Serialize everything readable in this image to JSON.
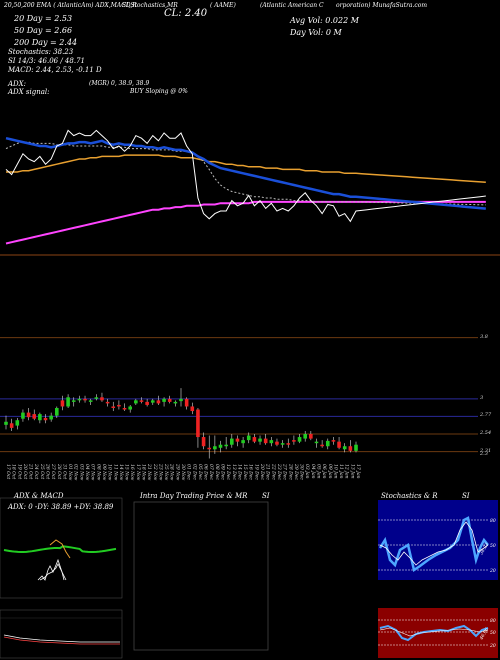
{
  "header": {
    "line1_left": "20,50,200 EMA ( AtlanticAm) ADX,MACD,R",
    "line1_mid": "SI,Stochastics,MR",
    "line1_ticker": "( AAME)",
    "line1_right": "(Atlantic American C",
    "line1_right2": "orporation) MunafaSutra.com",
    "cl_label": "CL: 2.40",
    "ema20": "20  Day = 2.53",
    "ema50": "50  Day = 2.66",
    "ema200": "200  Day = 2.44",
    "stochastics": "Stochastics: 38.23",
    "rsi": "SI 14/3: 46.06  / 48.71",
    "macd": "MACD: 2.44, 2.53,  -0.11 D",
    "adx": "ADX:",
    "adx_signal": "ADX  signal:",
    "adx_vals": "(MGR) 0,  38.9,  38.9",
    "buy_signal": "BUY Sloping @ 0%",
    "avg_vol": "Avg Vol: 0.022  M",
    "day_vol": "Day Vol: 0   M"
  },
  "price_axis": {
    "ticks": [
      "3.8",
      "3",
      "2.77",
      "2.54",
      "2.31",
      "2.3"
    ]
  },
  "colors": {
    "ema20": "#1a4fd8",
    "ema50": "#ffffff",
    "ema200": "#e8a030",
    "ema_long": "#ff44ff",
    "up": "#22cc22",
    "down": "#ee2222",
    "stoch_bg": "#00008b",
    "rsi_bg": "#8b0000"
  },
  "dates": [
    "17 Oct",
    "18 Oct",
    "19 Oct",
    "20 Oct",
    "21 Oct",
    "24 Oct",
    "25 Oct",
    "26 Oct",
    "27 Oct",
    "28 Oct",
    "31 Oct",
    "01 Nov",
    "02 Nov",
    "03 Nov",
    "04 Nov",
    "07 Nov",
    "08 Nov",
    "09 Nov",
    "10 Nov",
    "11 Nov",
    "14 Nov",
    "15 Nov",
    "16 Nov",
    "17 Nov",
    "18 Nov",
    "21 Nov",
    "22 Nov",
    "23 Nov",
    "25 Nov",
    "28 Nov",
    "29 Nov",
    "30 Nov",
    "01 Dec",
    "02 Dec",
    "05 Dec",
    "06 Dec",
    "07 Dec",
    "08 Dec",
    "09 Dec",
    "12 Dec",
    "13 Dec",
    "14 Dec",
    "15 Dec",
    "16 Dec",
    "19 Dec",
    "20 Dec",
    "21 Dec",
    "22 Dec",
    "23 Dec",
    "27 Dec",
    "28 Dec",
    "29 Dec",
    "30 Dec",
    "03 Jan",
    "04 Jan",
    "05 Jan",
    "06 Jan",
    "09 Jan",
    "10 Jan",
    "11 Jan",
    "12 Jan",
    "13 Jan",
    "17 Jan"
  ],
  "chart_data": {
    "type": "candlestick",
    "ylim": [
      2.2,
      3.9
    ],
    "candles": [
      {
        "o": 2.66,
        "h": 2.78,
        "l": 2.6,
        "c": 2.7
      },
      {
        "o": 2.68,
        "h": 2.74,
        "l": 2.58,
        "c": 2.62
      },
      {
        "o": 2.65,
        "h": 2.75,
        "l": 2.6,
        "c": 2.72
      },
      {
        "o": 2.74,
        "h": 2.86,
        "l": 2.7,
        "c": 2.82
      },
      {
        "o": 2.82,
        "h": 2.88,
        "l": 2.72,
        "c": 2.76
      },
      {
        "o": 2.8,
        "h": 2.86,
        "l": 2.72,
        "c": 2.74
      },
      {
        "o": 2.72,
        "h": 2.82,
        "l": 2.68,
        "c": 2.8
      },
      {
        "o": 2.75,
        "h": 2.8,
        "l": 2.68,
        "c": 2.72
      },
      {
        "o": 2.73,
        "h": 2.82,
        "l": 2.7,
        "c": 2.78
      },
      {
        "o": 2.78,
        "h": 2.9,
        "l": 2.75,
        "c": 2.88
      },
      {
        "o": 2.98,
        "h": 3.04,
        "l": 2.85,
        "c": 2.9
      },
      {
        "o": 2.9,
        "h": 3.06,
        "l": 2.88,
        "c": 3.02
      },
      {
        "o": 2.96,
        "h": 3.02,
        "l": 2.9,
        "c": 2.98
      },
      {
        "o": 2.98,
        "h": 3.04,
        "l": 2.95,
        "c": 3.0
      },
      {
        "o": 3.0,
        "h": 3.04,
        "l": 2.95,
        "c": 2.98
      },
      {
        "o": 2.96,
        "h": 3.0,
        "l": 2.92,
        "c": 2.98
      },
      {
        "o": 3.0,
        "h": 3.06,
        "l": 2.98,
        "c": 3.02
      },
      {
        "o": 3.02,
        "h": 3.08,
        "l": 2.96,
        "c": 2.98
      },
      {
        "o": 2.96,
        "h": 3.0,
        "l": 2.9,
        "c": 2.94
      },
      {
        "o": 2.9,
        "h": 2.96,
        "l": 2.84,
        "c": 2.88
      },
      {
        "o": 2.92,
        "h": 2.98,
        "l": 2.86,
        "c": 2.9
      },
      {
        "o": 2.88,
        "h": 2.94,
        "l": 2.84,
        "c": 2.86
      },
      {
        "o": 2.86,
        "h": 2.92,
        "l": 2.82,
        "c": 2.9
      },
      {
        "o": 2.94,
        "h": 3.0,
        "l": 2.92,
        "c": 2.98
      },
      {
        "o": 2.98,
        "h": 3.02,
        "l": 2.94,
        "c": 2.96
      },
      {
        "o": 2.96,
        "h": 3.0,
        "l": 2.9,
        "c": 2.92
      },
      {
        "o": 2.95,
        "h": 3.0,
        "l": 2.92,
        "c": 2.98
      },
      {
        "o": 2.98,
        "h": 3.04,
        "l": 2.92,
        "c": 2.94
      },
      {
        "o": 2.96,
        "h": 3.02,
        "l": 2.9,
        "c": 3.0
      },
      {
        "o": 3.0,
        "h": 3.04,
        "l": 2.94,
        "c": 2.96
      },
      {
        "o": 2.94,
        "h": 2.98,
        "l": 2.9,
        "c": 2.96
      },
      {
        "o": 2.97,
        "h": 3.14,
        "l": 2.9,
        "c": 3.0
      },
      {
        "o": 3.0,
        "h": 3.02,
        "l": 2.86,
        "c": 2.9
      },
      {
        "o": 2.9,
        "h": 2.95,
        "l": 2.8,
        "c": 2.84
      },
      {
        "o": 2.86,
        "h": 2.88,
        "l": 2.36,
        "c": 2.5
      },
      {
        "o": 2.5,
        "h": 2.56,
        "l": 2.34,
        "c": 2.38
      },
      {
        "o": 2.36,
        "h": 2.52,
        "l": 2.22,
        "c": 2.34
      },
      {
        "o": 2.34,
        "h": 2.52,
        "l": 2.28,
        "c": 2.38
      },
      {
        "o": 2.36,
        "h": 2.45,
        "l": 2.3,
        "c": 2.4
      },
      {
        "o": 2.38,
        "h": 2.5,
        "l": 2.34,
        "c": 2.4
      },
      {
        "o": 2.4,
        "h": 2.54,
        "l": 2.36,
        "c": 2.48
      },
      {
        "o": 2.48,
        "h": 2.52,
        "l": 2.38,
        "c": 2.44
      },
      {
        "o": 2.42,
        "h": 2.5,
        "l": 2.36,
        "c": 2.46
      },
      {
        "o": 2.46,
        "h": 2.56,
        "l": 2.42,
        "c": 2.52
      },
      {
        "o": 2.5,
        "h": 2.54,
        "l": 2.42,
        "c": 2.44
      },
      {
        "o": 2.44,
        "h": 2.52,
        "l": 2.4,
        "c": 2.48
      },
      {
        "o": 2.48,
        "h": 2.54,
        "l": 2.4,
        "c": 2.42
      },
      {
        "o": 2.42,
        "h": 2.5,
        "l": 2.38,
        "c": 2.46
      },
      {
        "o": 2.44,
        "h": 2.48,
        "l": 2.38,
        "c": 2.4
      },
      {
        "o": 2.4,
        "h": 2.46,
        "l": 2.36,
        "c": 2.42
      },
      {
        "o": 2.42,
        "h": 2.48,
        "l": 2.36,
        "c": 2.4
      },
      {
        "o": 2.46,
        "h": 2.52,
        "l": 2.4,
        "c": 2.44
      },
      {
        "o": 2.44,
        "h": 2.54,
        "l": 2.42,
        "c": 2.5
      },
      {
        "o": 2.48,
        "h": 2.58,
        "l": 2.44,
        "c": 2.54
      },
      {
        "o": 2.54,
        "h": 2.58,
        "l": 2.46,
        "c": 2.48
      },
      {
        "o": 2.42,
        "h": 2.48,
        "l": 2.36,
        "c": 2.44
      },
      {
        "o": 2.4,
        "h": 2.46,
        "l": 2.36,
        "c": 2.38
      },
      {
        "o": 2.38,
        "h": 2.48,
        "l": 2.34,
        "c": 2.45
      },
      {
        "o": 2.46,
        "h": 2.5,
        "l": 2.4,
        "c": 2.44
      },
      {
        "o": 2.44,
        "h": 2.5,
        "l": 2.34,
        "c": 2.36
      },
      {
        "o": 2.34,
        "h": 2.42,
        "l": 2.3,
        "c": 2.38
      },
      {
        "o": 2.38,
        "h": 2.46,
        "l": 2.3,
        "c": 2.32
      },
      {
        "o": 2.32,
        "h": 2.44,
        "l": 2.3,
        "c": 2.4
      }
    ],
    "ema_panel": {
      "ema20": [
        0.86,
        0.85,
        0.84,
        0.83,
        0.82,
        0.81,
        0.8,
        0.8,
        0.79,
        0.8,
        0.81,
        0.82,
        0.82,
        0.83,
        0.83,
        0.82,
        0.83,
        0.84,
        0.82,
        0.81,
        0.82,
        0.81,
        0.81,
        0.8,
        0.8,
        0.79,
        0.79,
        0.78,
        0.79,
        0.78,
        0.77,
        0.77,
        0.76,
        0.75,
        0.72,
        0.7,
        0.67,
        0.65,
        0.63,
        0.62,
        0.61,
        0.6,
        0.59,
        0.58,
        0.57,
        0.56,
        0.55,
        0.54,
        0.53,
        0.52,
        0.51,
        0.5,
        0.49,
        0.48,
        0.47,
        0.46,
        0.45,
        0.44,
        0.43,
        0.43,
        0.42,
        0.41,
        0.41
      ],
      "ema50": [
        0.78,
        0.8,
        0.82,
        0.83,
        0.83,
        0.82,
        0.82,
        0.82,
        0.82,
        0.81,
        0.81,
        0.81,
        0.8,
        0.8,
        0.8,
        0.8,
        0.8,
        0.8,
        0.79,
        0.79,
        0.79,
        0.79,
        0.78,
        0.78,
        0.78,
        0.78,
        0.77,
        0.77,
        0.77,
        0.77,
        0.76,
        0.76,
        0.76,
        0.75,
        0.72,
        0.68,
        0.62,
        0.55,
        0.5,
        0.47,
        0.45,
        0.44,
        0.43,
        0.42,
        0.41,
        0.41,
        0.4,
        0.4,
        0.39,
        0.39,
        0.39,
        0.38,
        0.38,
        0.38,
        0.38,
        0.37,
        0.37,
        0.37,
        0.37,
        0.37,
        0.37,
        0.37,
        0.37
      ],
      "ema200": [
        0.6,
        0.6,
        0.6,
        0.61,
        0.61,
        0.62,
        0.63,
        0.64,
        0.65,
        0.66,
        0.67,
        0.68,
        0.69,
        0.7,
        0.7,
        0.71,
        0.71,
        0.72,
        0.72,
        0.72,
        0.72,
        0.73,
        0.73,
        0.73,
        0.73,
        0.73,
        0.73,
        0.73,
        0.72,
        0.72,
        0.72,
        0.71,
        0.71,
        0.71,
        0.7,
        0.69,
        0.68,
        0.68,
        0.67,
        0.66,
        0.66,
        0.65,
        0.65,
        0.64,
        0.64,
        0.64,
        0.63,
        0.63,
        0.63,
        0.62,
        0.62,
        0.62,
        0.62,
        0.61,
        0.61,
        0.61,
        0.6,
        0.6,
        0.6,
        0.6,
        0.59,
        0.59,
        0.59
      ],
      "ema_long": [
        0.05,
        0.06,
        0.07,
        0.08,
        0.09,
        0.1,
        0.11,
        0.12,
        0.13,
        0.14,
        0.15,
        0.16,
        0.17,
        0.18,
        0.19,
        0.2,
        0.21,
        0.22,
        0.23,
        0.24,
        0.25,
        0.26,
        0.27,
        0.28,
        0.29,
        0.3,
        0.31,
        0.31,
        0.32,
        0.32,
        0.33,
        0.33,
        0.34,
        0.34,
        0.34,
        0.35,
        0.35,
        0.35,
        0.36,
        0.36,
        0.36,
        0.36,
        0.36,
        0.36,
        0.37,
        0.37,
        0.37,
        0.37,
        0.37,
        0.37,
        0.37,
        0.37,
        0.37,
        0.37,
        0.37,
        0.37,
        0.37,
        0.37,
        0.37,
        0.37,
        0.37,
        0.37,
        0.37
      ],
      "price": [
        0.62,
        0.58,
        0.66,
        0.74,
        0.7,
        0.68,
        0.72,
        0.66,
        0.7,
        0.8,
        0.82,
        0.92,
        0.88,
        0.9,
        0.88,
        0.88,
        0.92,
        0.88,
        0.84,
        0.78,
        0.8,
        0.76,
        0.8,
        0.88,
        0.86,
        0.82,
        0.88,
        0.84,
        0.9,
        0.86,
        0.86,
        0.9,
        0.8,
        0.74,
        0.4,
        0.28,
        0.24,
        0.28,
        0.3,
        0.3,
        0.38,
        0.34,
        0.36,
        0.42,
        0.34,
        0.38,
        0.32,
        0.36,
        0.3,
        0.32,
        0.3,
        0.34,
        0.4,
        0.44,
        0.38,
        0.34,
        0.28,
        0.35,
        0.34,
        0.26,
        0.28,
        0.22,
        0.3
      ]
    }
  },
  "panels": {
    "adx_title": "ADX  & MACD",
    "adx_vals": "ADX: 0  -DY: 38.89  +DY: 38.89",
    "intra_title": "Intra  Day Trading Price  & MR",
    "intra_si": "SI",
    "stoch_title": "Stochastics & R",
    "stoch_si": "SI",
    "stoch_levels": [
      "80",
      "50",
      "20"
    ],
    "stoch_value": "38.23",
    "rsi_levels": [
      "80",
      "50",
      "20"
    ],
    "rsi_value": "46.06",
    "adx_small_ticks": [
      "0",
      "50"
    ]
  }
}
